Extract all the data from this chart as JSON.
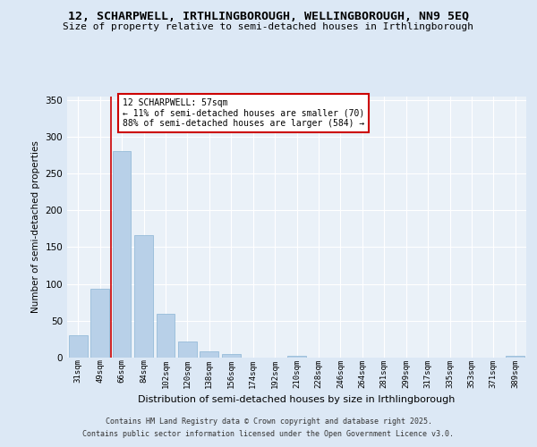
{
  "title1": "12, SCHARPWELL, IRTHLINGBOROUGH, WELLINGBOROUGH, NN9 5EQ",
  "title2": "Size of property relative to semi-detached houses in Irthlingborough",
  "xlabel": "Distribution of semi-detached houses by size in Irthlingborough",
  "ylabel": "Number of semi-detached properties",
  "categories": [
    "31sqm",
    "49sqm",
    "66sqm",
    "84sqm",
    "102sqm",
    "120sqm",
    "138sqm",
    "156sqm",
    "174sqm",
    "192sqm",
    "210sqm",
    "228sqm",
    "246sqm",
    "264sqm",
    "281sqm",
    "299sqm",
    "317sqm",
    "335sqm",
    "353sqm",
    "371sqm",
    "389sqm"
  ],
  "values": [
    30,
    94,
    280,
    166,
    60,
    22,
    9,
    5,
    0,
    0,
    3,
    0,
    0,
    0,
    0,
    0,
    0,
    0,
    0,
    0,
    2
  ],
  "bar_color": "#b8d0e8",
  "bar_edge_color": "#8ab4d4",
  "red_line_x": 1.5,
  "annotation_text": "12 SCHARPWELL: 57sqm\n← 11% of semi-detached houses are smaller (70)\n88% of semi-detached houses are larger (584) →",
  "annotation_box_color": "#ffffff",
  "annotation_box_edge": "#cc0000",
  "red_line_color": "#cc0000",
  "ylim": [
    0,
    355
  ],
  "yticks": [
    0,
    50,
    100,
    150,
    200,
    250,
    300,
    350
  ],
  "footer1": "Contains HM Land Registry data © Crown copyright and database right 2025.",
  "footer2": "Contains public sector information licensed under the Open Government Licence v3.0.",
  "bg_color": "#dce8f5",
  "plot_bg_color": "#eaf1f8"
}
